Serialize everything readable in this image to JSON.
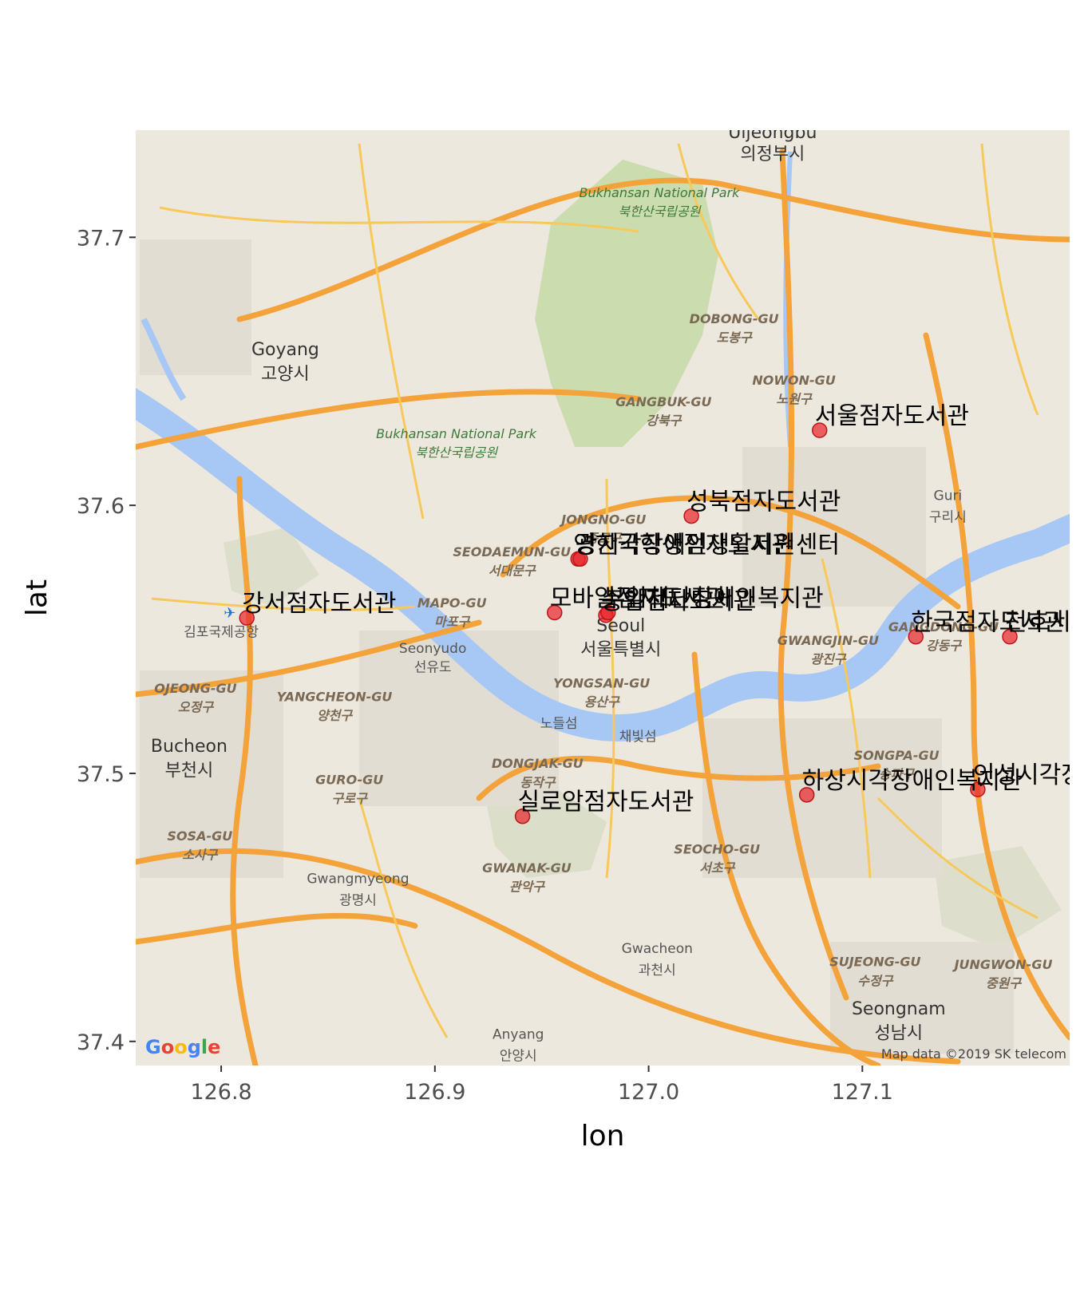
{
  "chart_data": {
    "type": "scatter",
    "xlabel": "lon",
    "ylabel": "lat",
    "xlim": [
      126.76,
      127.197
    ],
    "ylim": [
      37.391,
      37.74
    ],
    "x_ticks": [
      126.8,
      126.9,
      127.0,
      127.1
    ],
    "x_tick_labels": [
      "126.8",
      "126.9",
      "127.0",
      "127.1"
    ],
    "y_ticks": [
      37.4,
      37.5,
      37.6,
      37.7
    ],
    "y_tick_labels": [
      "37.4",
      "37.5",
      "37.6",
      "37.7"
    ],
    "grid": false,
    "background": "roadmap tiles",
    "point_color": "#e8232a",
    "points": [
      {
        "lon": 127.08,
        "lat": 37.628,
        "label": "서울점자도서관"
      },
      {
        "lon": 127.02,
        "lat": 37.596,
        "label": "성북점자도서관"
      },
      {
        "lon": 126.967,
        "lat": 37.58,
        "label": "영한국학생점자도서관"
      },
      {
        "lon": 126.968,
        "lat": 37.58,
        "label": "광지각장애인생활지원센터"
      },
      {
        "lon": 126.812,
        "lat": 37.558,
        "label": "강서점자도서관"
      },
      {
        "lon": 126.956,
        "lat": 37.56,
        "label": "모바일점자도서관"
      },
      {
        "lon": 126.98,
        "lat": 37.559,
        "label": "송암점자도서관"
      },
      {
        "lon": 126.981,
        "lat": 37.56,
        "label": "부임재단장애인복지관"
      },
      {
        "lon": 127.125,
        "lat": 37.551,
        "label": "한국점자도서관"
      },
      {
        "lon": 127.169,
        "lat": 37.551,
        "label": "천호시각장애인복지관"
      },
      {
        "lon": 127.074,
        "lat": 37.492,
        "label": "하상시각장애인복지관"
      },
      {
        "lon": 127.154,
        "lat": 37.494,
        "label": "인성시각장애인복지관"
      },
      {
        "lon": 126.941,
        "lat": 37.484,
        "label": "실로암점자도서관"
      }
    ]
  },
  "map": {
    "attribution": "Map data ©2019 SK telecom",
    "logo": "Google",
    "places_large": [
      {
        "text": "Goyang",
        "lon": 126.83,
        "lat": 37.656
      },
      {
        "text": "고양시",
        "lon": 126.83,
        "lat": 37.647
      },
      {
        "text": "Bucheon",
        "lon": 126.785,
        "lat": 37.508
      },
      {
        "text": "부천시",
        "lon": 126.785,
        "lat": 37.499
      },
      {
        "text": "Seoul",
        "lon": 126.987,
        "lat": 37.553
      },
      {
        "text": "서울특별시",
        "lon": 126.987,
        "lat": 37.544
      },
      {
        "text": "Seongnam",
        "lon": 127.117,
        "lat": 37.41
      },
      {
        "text": "성남시",
        "lon": 127.117,
        "lat": 37.401
      },
      {
        "text": "Uijeongbu",
        "lon": 127.058,
        "lat": 37.737
      },
      {
        "text": "의정부시",
        "lon": 127.058,
        "lat": 37.729
      }
    ],
    "places_medium": [
      {
        "text": "Guri",
        "lon": 127.14,
        "lat": 37.602
      },
      {
        "text": "구리시",
        "lon": 127.14,
        "lat": 37.594
      },
      {
        "text": "Gwangmyeong",
        "lon": 126.864,
        "lat": 37.459
      },
      {
        "text": "광명시",
        "lon": 126.864,
        "lat": 37.451
      },
      {
        "text": "Gwacheon",
        "lon": 127.004,
        "lat": 37.433
      },
      {
        "text": "과천시",
        "lon": 127.004,
        "lat": 37.425
      },
      {
        "text": "Anyang",
        "lon": 126.939,
        "lat": 37.401
      },
      {
        "text": "안양시",
        "lon": 126.939,
        "lat": 37.393
      },
      {
        "text": "Seonyudo",
        "lon": 126.899,
        "lat": 37.545
      },
      {
        "text": "선유도",
        "lon": 126.899,
        "lat": 37.538
      },
      {
        "text": "김포국제공항",
        "lon": 126.8,
        "lat": 37.551
      },
      {
        "text": "노들섬",
        "lon": 126.958,
        "lat": 37.517
      },
      {
        "text": "채빛섬",
        "lon": 126.995,
        "lat": 37.512
      }
    ],
    "districts": [
      {
        "text": "DOBONG-GU",
        "lon": 127.04,
        "lat": 37.668
      },
      {
        "text": "도봉구",
        "lon": 127.04,
        "lat": 37.661
      },
      {
        "text": "NOWON-GU",
        "lon": 127.068,
        "lat": 37.645
      },
      {
        "text": "노원구",
        "lon": 127.068,
        "lat": 37.638
      },
      {
        "text": "GANGBUK-GU",
        "lon": 127.007,
        "lat": 37.637
      },
      {
        "text": "강북구",
        "lon": 127.007,
        "lat": 37.63
      },
      {
        "text": "JONGNO-GU",
        "lon": 126.979,
        "lat": 37.593
      },
      {
        "text": "종로구",
        "lon": 126.979,
        "lat": 37.586
      },
      {
        "text": "SEODAEMUN-GU",
        "lon": 126.936,
        "lat": 37.581
      },
      {
        "text": "서대문구",
        "lon": 126.936,
        "lat": 37.574
      },
      {
        "text": "MAPO-GU",
        "lon": 126.908,
        "lat": 37.562
      },
      {
        "text": "마포구",
        "lon": 126.908,
        "lat": 37.555
      },
      {
        "text": "YONGSAN-GU",
        "lon": 126.978,
        "lat": 37.532
      },
      {
        "text": "용산구",
        "lon": 126.978,
        "lat": 37.525
      },
      {
        "text": "GWANGJIN-GU",
        "lon": 127.084,
        "lat": 37.548
      },
      {
        "text": "광진구",
        "lon": 127.084,
        "lat": 37.541
      },
      {
        "text": "GANGDONG-GU",
        "lon": 127.138,
        "lat": 37.553
      },
      {
        "text": "강동구",
        "lon": 127.138,
        "lat": 37.546
      },
      {
        "text": "SONGPA-GU",
        "lon": 127.116,
        "lat": 37.505
      },
      {
        "text": "송파구",
        "lon": 127.116,
        "lat": 37.498
      },
      {
        "text": "SEOCHO-GU",
        "lon": 127.032,
        "lat": 37.47
      },
      {
        "text": "서초구",
        "lon": 127.032,
        "lat": 37.463
      },
      {
        "text": "DONGJAK-GU",
        "lon": 126.948,
        "lat": 37.502
      },
      {
        "text": "동작구",
        "lon": 126.948,
        "lat": 37.495
      },
      {
        "text": "GWANAK-GU",
        "lon": 126.943,
        "lat": 37.463
      },
      {
        "text": "관악구",
        "lon": 126.943,
        "lat": 37.456
      },
      {
        "text": "GURO-GU",
        "lon": 126.86,
        "lat": 37.496
      },
      {
        "text": "구로구",
        "lon": 126.86,
        "lat": 37.489
      },
      {
        "text": "YANGCHEON-GU",
        "lon": 126.853,
        "lat": 37.527
      },
      {
        "text": "양천구",
        "lon": 126.853,
        "lat": 37.52
      },
      {
        "text": "OJEONG-GU",
        "lon": 126.788,
        "lat": 37.53
      },
      {
        "text": "오정구",
        "lon": 126.788,
        "lat": 37.523
      },
      {
        "text": "SOSA-GU",
        "lon": 126.79,
        "lat": 37.475
      },
      {
        "text": "소사구",
        "lon": 126.79,
        "lat": 37.468
      },
      {
        "text": "SUJEONG-GU",
        "lon": 127.106,
        "lat": 37.428
      },
      {
        "text": "수정구",
        "lon": 127.106,
        "lat": 37.421
      },
      {
        "text": "JUNGWON-GU",
        "lon": 127.166,
        "lat": 37.427
      },
      {
        "text": "중원구",
        "lon": 127.166,
        "lat": 37.42
      }
    ],
    "parks": [
      {
        "text": "Bukhansan National Park",
        "lon": 127.005,
        "lat": 37.715
      },
      {
        "text": "북한산국립공원",
        "lon": 127.005,
        "lat": 37.708
      },
      {
        "text": "Bukhansan National Park",
        "lon": 126.91,
        "lat": 37.625
      },
      {
        "text": "북한산국립공원",
        "lon": 126.91,
        "lat": 37.618
      }
    ]
  }
}
